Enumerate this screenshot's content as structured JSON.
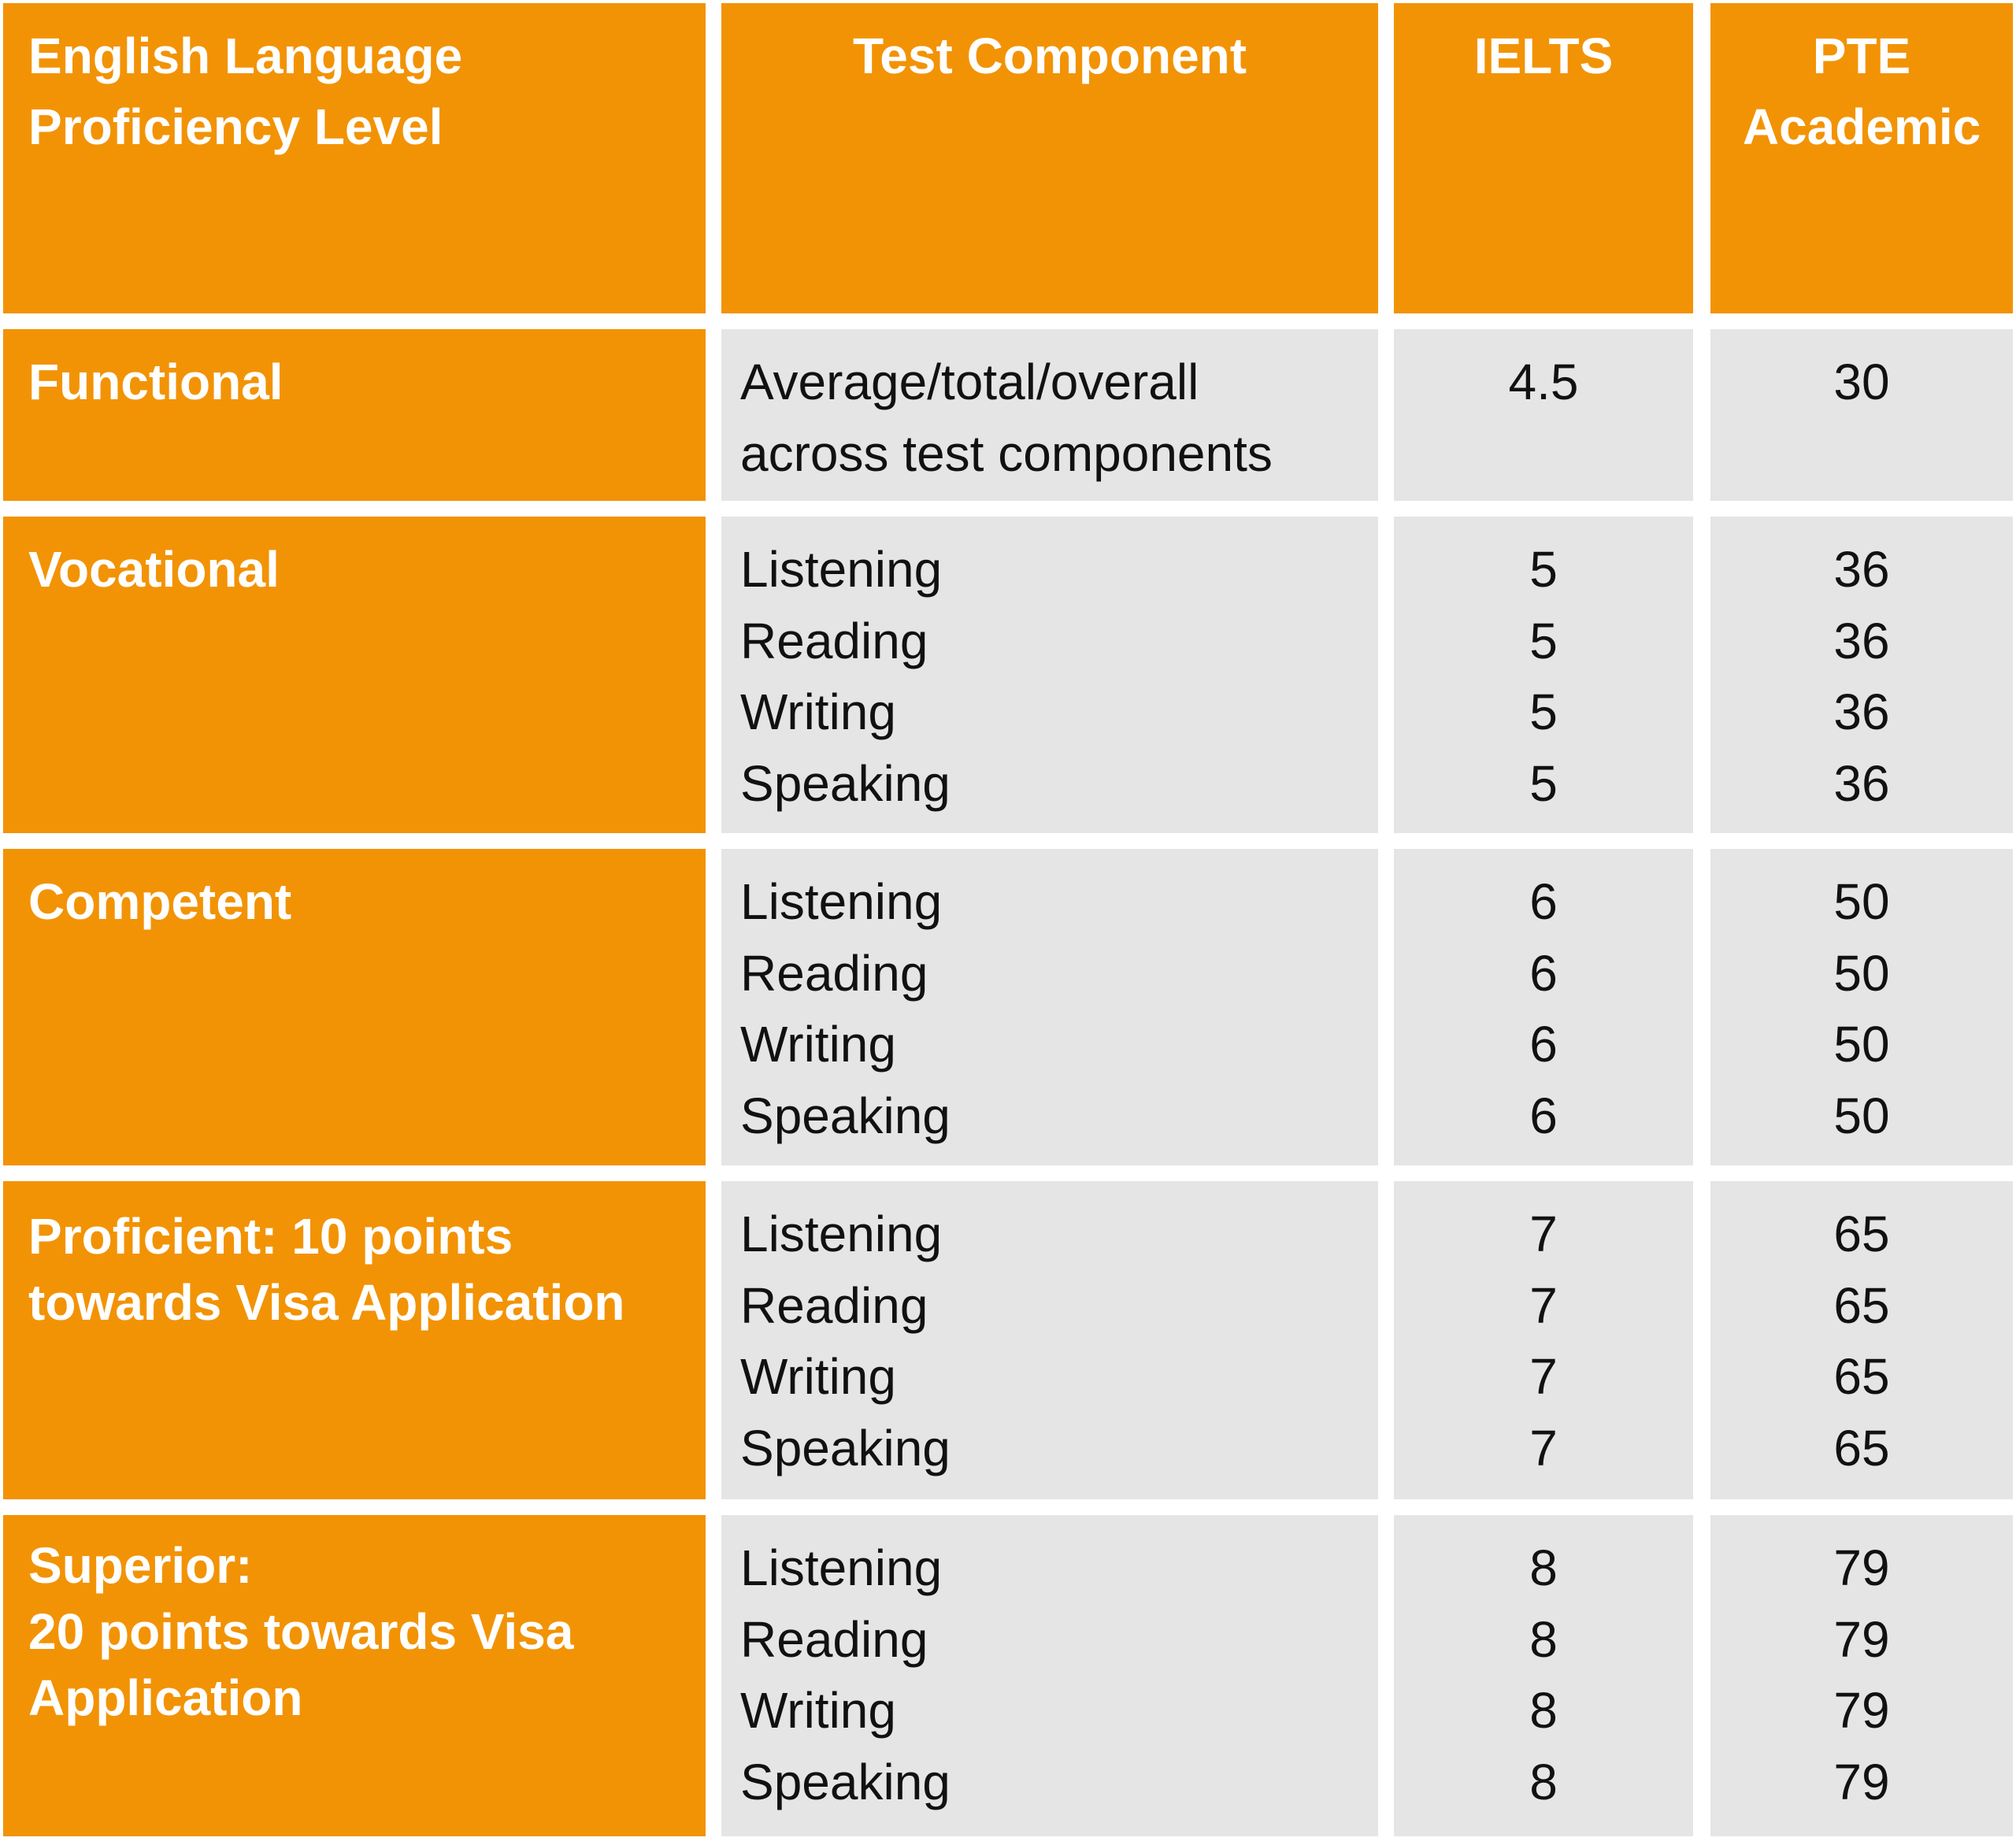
{
  "headers": {
    "level": [
      "English Language",
      "Proficiency Level"
    ],
    "component": "Test Component",
    "ielts": "IELTS",
    "pte": [
      "PTE",
      "Academic"
    ]
  },
  "rows": [
    {
      "level": [
        "Functional"
      ],
      "components": [
        "Average/total/overall",
        "across test components"
      ],
      "ielts": [
        "4.5"
      ],
      "pte": [
        "30"
      ]
    },
    {
      "level": [
        "Vocational"
      ],
      "components": [
        "Listening",
        "Reading",
        "Writing",
        "Speaking"
      ],
      "ielts": [
        "5",
        "5",
        "5",
        "5"
      ],
      "pte": [
        "36",
        "36",
        "36",
        "36"
      ]
    },
    {
      "level": [
        "Competent"
      ],
      "components": [
        "Listening",
        "Reading",
        "Writing",
        "Speaking"
      ],
      "ielts": [
        "6",
        "6",
        "6",
        "6"
      ],
      "pte": [
        "50",
        "50",
        "50",
        "50"
      ]
    },
    {
      "level": [
        "Proficient:  10 points",
        "towards Visa Application"
      ],
      "components": [
        "Listening",
        "Reading",
        "Writing",
        "Speaking"
      ],
      "ielts": [
        "7",
        "7",
        "7",
        "7"
      ],
      "pte": [
        "65",
        "65",
        "65",
        "65"
      ]
    },
    {
      "level": [
        "Superior:",
        "20 points towards Visa",
        "Application"
      ],
      "components": [
        "Listening",
        "Reading",
        "Writing",
        "Speaking"
      ],
      "ielts": [
        "8",
        "8",
        "8",
        "8"
      ],
      "pte": [
        "79",
        "79",
        "79",
        "79"
      ]
    }
  ],
  "colors": {
    "header_and_level_fill": "#f29305",
    "body_fill": "#e5e5e5",
    "header_text": "#ffffff",
    "body_text": "#111111"
  }
}
